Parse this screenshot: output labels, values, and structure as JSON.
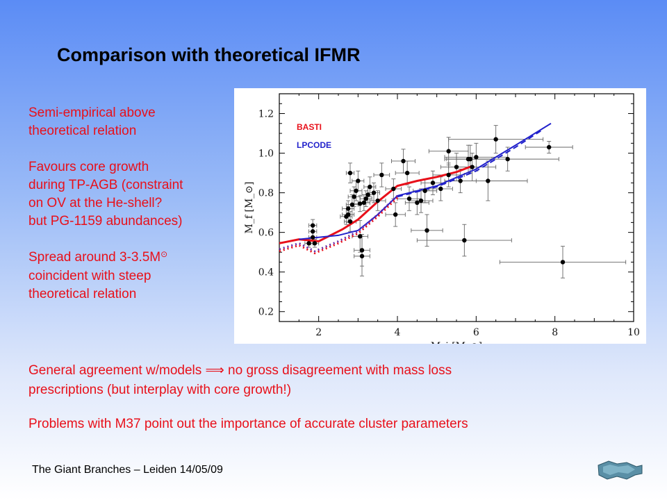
{
  "slide": {
    "title": "Comparison with theoretical IFMR",
    "bullets": [
      "Semi-empirical above\ntheoretical relation",
      "Favours core growth\nduring TP-AGB (constraint\non OV at the He-shell?\nbut PG-1159 abundances)"
    ],
    "spread_text_a": "Spread around 3-3.5M",
    "spread_symbol": "⊙",
    "spread_text_b": "coincident with steep\ntheoretical relation",
    "general_agreement": "General agreement w/models  ⟹  no gross disagreement with mass loss\nprescriptions (but interplay with core growth!)",
    "problems": "Problems with M37 point out the importance of accurate cluster parameters",
    "footer": "The Giant Branches – Leiden 14/05/09"
  },
  "chart_data": {
    "type": "scatter",
    "xlabel": "M_i [M_⊙]",
    "ylabel": "M_f [M_⊙]",
    "xlim": [
      1,
      10
    ],
    "ylim": [
      0.15,
      1.3
    ],
    "xticks": [
      2,
      4,
      6,
      8,
      10
    ],
    "yticks": [
      0.2,
      0.4,
      0.6,
      0.8,
      1.0,
      1.2
    ],
    "grid": false,
    "legend": [
      {
        "name": "BASTI",
        "color": "#e8101a"
      },
      {
        "name": "LPCODE",
        "color": "#2222cc"
      }
    ],
    "series": [
      {
        "name": "BASTI",
        "style": "solid",
        "color": "#e8101a",
        "x": [
          1.0,
          1.5,
          2.0,
          2.6,
          3.0,
          3.5,
          4.0,
          4.5,
          5.0,
          5.5,
          5.9
        ],
        "y": [
          0.545,
          0.565,
          0.555,
          0.615,
          0.665,
          0.755,
          0.835,
          0.86,
          0.88,
          0.905,
          0.935
        ]
      },
      {
        "name": "LPCODE",
        "style": "solid",
        "color": "#2222cc",
        "x": [
          1.5,
          2.0,
          2.5,
          3.0,
          3.5,
          4.0,
          5.0,
          6.0,
          7.0,
          7.9
        ],
        "y": [
          0.565,
          0.575,
          0.585,
          0.61,
          0.69,
          0.785,
          0.835,
          0.92,
          1.04,
          1.15
        ]
      },
      {
        "name": "",
        "style": "dashed",
        "color": "#2222cc",
        "x": [
          4.0,
          5.0,
          6.0,
          7.0,
          7.7
        ],
        "y": [
          0.78,
          0.83,
          0.91,
          1.03,
          1.12
        ]
      },
      {
        "name": "",
        "style": "dotted",
        "color": "#e8101a",
        "x": [
          1.0,
          1.5,
          1.9,
          2.5,
          3.0,
          3.5,
          4.0
        ],
        "y": [
          0.505,
          0.535,
          0.495,
          0.545,
          0.595,
          0.68,
          0.775
        ]
      },
      {
        "name": "",
        "style": "dotted",
        "color": "#6a2aa8",
        "x": [
          1.0,
          1.5,
          1.9,
          2.5,
          3.0,
          3.5,
          4.0
        ],
        "y": [
          0.515,
          0.545,
          0.505,
          0.555,
          0.605,
          0.69,
          0.785
        ]
      }
    ],
    "points": [
      {
        "x": 1.75,
        "y": 0.545,
        "xe": 0.1,
        "ye": 0.02
      },
      {
        "x": 1.85,
        "y": 0.575,
        "xe": 0.1,
        "ye": 0.03
      },
      {
        "x": 1.85,
        "y": 0.605,
        "xe": 0.1,
        "ye": 0.03
      },
      {
        "x": 1.85,
        "y": 0.635,
        "xe": 0.1,
        "ye": 0.03
      },
      {
        "x": 1.9,
        "y": 0.545,
        "xe": 0.1,
        "ye": 0.02
      },
      {
        "x": 2.7,
        "y": 0.68,
        "xe": 0.15,
        "ye": 0.04
      },
      {
        "x": 2.75,
        "y": 0.69,
        "xe": 0.15,
        "ye": 0.04
      },
      {
        "x": 2.75,
        "y": 0.72,
        "xe": 0.15,
        "ye": 0.04
      },
      {
        "x": 2.8,
        "y": 0.9,
        "xe": 0.1,
        "ye": 0.05
      },
      {
        "x": 2.8,
        "y": 0.655,
        "xe": 0.15,
        "ye": 0.05
      },
      {
        "x": 2.85,
        "y": 0.74,
        "xe": 0.15,
        "ye": 0.05
      },
      {
        "x": 2.9,
        "y": 0.78,
        "xe": 0.15,
        "ye": 0.05
      },
      {
        "x": 2.95,
        "y": 0.81,
        "xe": 0.15,
        "ye": 0.05
      },
      {
        "x": 3.0,
        "y": 0.86,
        "xe": 0.15,
        "ye": 0.05
      },
      {
        "x": 3.05,
        "y": 0.745,
        "xe": 0.15,
        "ye": 0.04
      },
      {
        "x": 3.05,
        "y": 0.58,
        "xe": 0.2,
        "ye": 0.08
      },
      {
        "x": 3.1,
        "y": 0.51,
        "xe": 0.2,
        "ye": 0.08
      },
      {
        "x": 3.1,
        "y": 0.48,
        "xe": 0.2,
        "ye": 0.1
      },
      {
        "x": 3.15,
        "y": 0.75,
        "xe": 0.15,
        "ye": 0.04
      },
      {
        "x": 3.2,
        "y": 0.77,
        "xe": 0.15,
        "ye": 0.04
      },
      {
        "x": 3.25,
        "y": 0.79,
        "xe": 0.15,
        "ye": 0.04
      },
      {
        "x": 3.3,
        "y": 0.83,
        "xe": 0.15,
        "ye": 0.05
      },
      {
        "x": 3.4,
        "y": 0.8,
        "xe": 0.15,
        "ye": 0.05
      },
      {
        "x": 3.5,
        "y": 0.76,
        "xe": 0.2,
        "ye": 0.05
      },
      {
        "x": 3.6,
        "y": 0.89,
        "xe": 0.2,
        "ye": 0.06
      },
      {
        "x": 3.9,
        "y": 0.82,
        "xe": 0.2,
        "ye": 0.05
      },
      {
        "x": 3.95,
        "y": 0.69,
        "xe": 0.25,
        "ye": 0.06
      },
      {
        "x": 4.15,
        "y": 0.96,
        "xe": 0.3,
        "ye": 0.06
      },
      {
        "x": 4.25,
        "y": 0.9,
        "xe": 0.3,
        "ye": 0.06
      },
      {
        "x": 4.3,
        "y": 0.77,
        "xe": 0.3,
        "ye": 0.06
      },
      {
        "x": 4.5,
        "y": 0.75,
        "xe": 0.3,
        "ye": 0.06
      },
      {
        "x": 4.6,
        "y": 0.76,
        "xe": 0.3,
        "ye": 0.06
      },
      {
        "x": 4.7,
        "y": 0.81,
        "xe": 0.3,
        "ye": 0.06
      },
      {
        "x": 4.75,
        "y": 0.61,
        "xe": 0.4,
        "ye": 0.08
      },
      {
        "x": 4.9,
        "y": 0.85,
        "xe": 0.3,
        "ye": 0.06
      },
      {
        "x": 5.1,
        "y": 0.82,
        "xe": 0.3,
        "ye": 0.06
      },
      {
        "x": 5.3,
        "y": 0.89,
        "xe": 0.4,
        "ye": 0.06
      },
      {
        "x": 5.5,
        "y": 0.93,
        "xe": 0.4,
        "ye": 0.07
      },
      {
        "x": 5.6,
        "y": 0.86,
        "xe": 0.4,
        "ye": 0.06
      },
      {
        "x": 5.7,
        "y": 0.56,
        "xe": 1.2,
        "ye": 0.08
      },
      {
        "x": 5.8,
        "y": 0.97,
        "xe": 0.6,
        "ye": 0.07
      },
      {
        "x": 5.3,
        "y": 1.01,
        "xe": 0.5,
        "ye": 0.07
      },
      {
        "x": 5.85,
        "y": 0.97,
        "xe": 0.6,
        "ye": 0.07
      },
      {
        "x": 5.9,
        "y": 0.93,
        "xe": 0.6,
        "ye": 0.07
      },
      {
        "x": 6.0,
        "y": 0.98,
        "xe": 0.8,
        "ye": 0.07
      },
      {
        "x": 6.3,
        "y": 0.86,
        "xe": 1.0,
        "ye": 0.1
      },
      {
        "x": 6.5,
        "y": 1.07,
        "xe": 1.2,
        "ye": 0.07
      },
      {
        "x": 6.8,
        "y": 0.97,
        "xe": 1.3,
        "ye": 0.06
      },
      {
        "x": 7.85,
        "y": 1.03,
        "xe": 0.6,
        "ye": 0.03
      },
      {
        "x": 8.2,
        "y": 0.45,
        "xe": 1.6,
        "ye": 0.08
      }
    ]
  }
}
